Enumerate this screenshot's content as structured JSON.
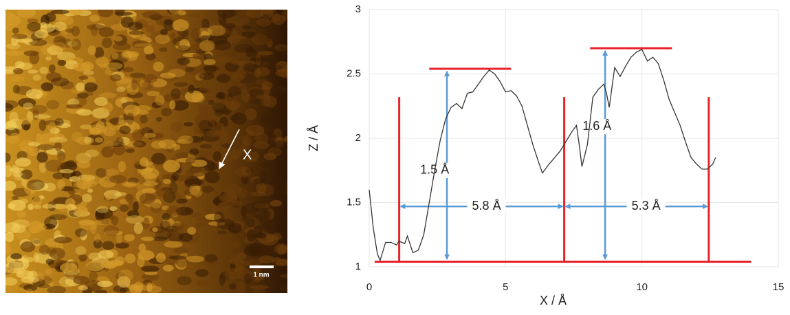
{
  "image": {
    "label": "X",
    "scale_bar": "1 nm"
  },
  "chart_data": {
    "type": "line",
    "x_label": "X / Å",
    "y_label": "Z / Å",
    "x": [
      0,
      0.15,
      0.3,
      0.4,
      0.6,
      0.8,
      1.0,
      1.1,
      1.3,
      1.4,
      1.6,
      1.8,
      2.0,
      2.2,
      2.4,
      2.6,
      2.8,
      3.0,
      3.2,
      3.4,
      3.6,
      3.8,
      4.0,
      4.2,
      4.4,
      4.6,
      4.8,
      5.0,
      5.2,
      5.4,
      5.6,
      5.8,
      6.0,
      6.2,
      6.35,
      6.6,
      6.8,
      7.0,
      7.2,
      7.4,
      7.6,
      7.7,
      7.8,
      8.0,
      8.2,
      8.4,
      8.6,
      8.7,
      8.8,
      9.0,
      9.2,
      9.4,
      9.6,
      9.8,
      10.0,
      10.2,
      10.4,
      10.6,
      10.8,
      11.0,
      11.2,
      11.4,
      11.6,
      11.8,
      12.0,
      12.2,
      12.4,
      12.6,
      12.7
    ],
    "values": [
      1.6,
      1.3,
      1.1,
      1.05,
      1.19,
      1.19,
      1.17,
      1.2,
      1.18,
      1.24,
      1.11,
      1.13,
      1.25,
      1.5,
      1.75,
      1.98,
      2.15,
      2.24,
      2.27,
      2.23,
      2.35,
      2.36,
      2.42,
      2.48,
      2.53,
      2.5,
      2.44,
      2.36,
      2.37,
      2.33,
      2.25,
      2.1,
      1.95,
      1.82,
      1.73,
      1.8,
      1.85,
      1.9,
      1.97,
      2.04,
      2.1,
      1.95,
      1.78,
      1.95,
      2.32,
      2.38,
      2.42,
      2.35,
      2.24,
      2.55,
      2.48,
      2.56,
      2.63,
      2.67,
      2.69,
      2.6,
      2.63,
      2.58,
      2.45,
      2.3,
      2.2,
      2.1,
      1.97,
      1.85,
      1.8,
      1.76,
      1.76,
      1.8,
      1.85
    ],
    "color": "#333333",
    "xlim": [
      0,
      15
    ],
    "xticks": [
      0,
      5,
      10,
      15
    ],
    "ylim": [
      1,
      3
    ],
    "yticks": [
      1,
      1.5,
      2,
      2.5,
      3
    ],
    "grid": true,
    "annotations": [
      "1.5 Å",
      "1.6 Å",
      "5.8 Å",
      "5.3 Å"
    ]
  }
}
